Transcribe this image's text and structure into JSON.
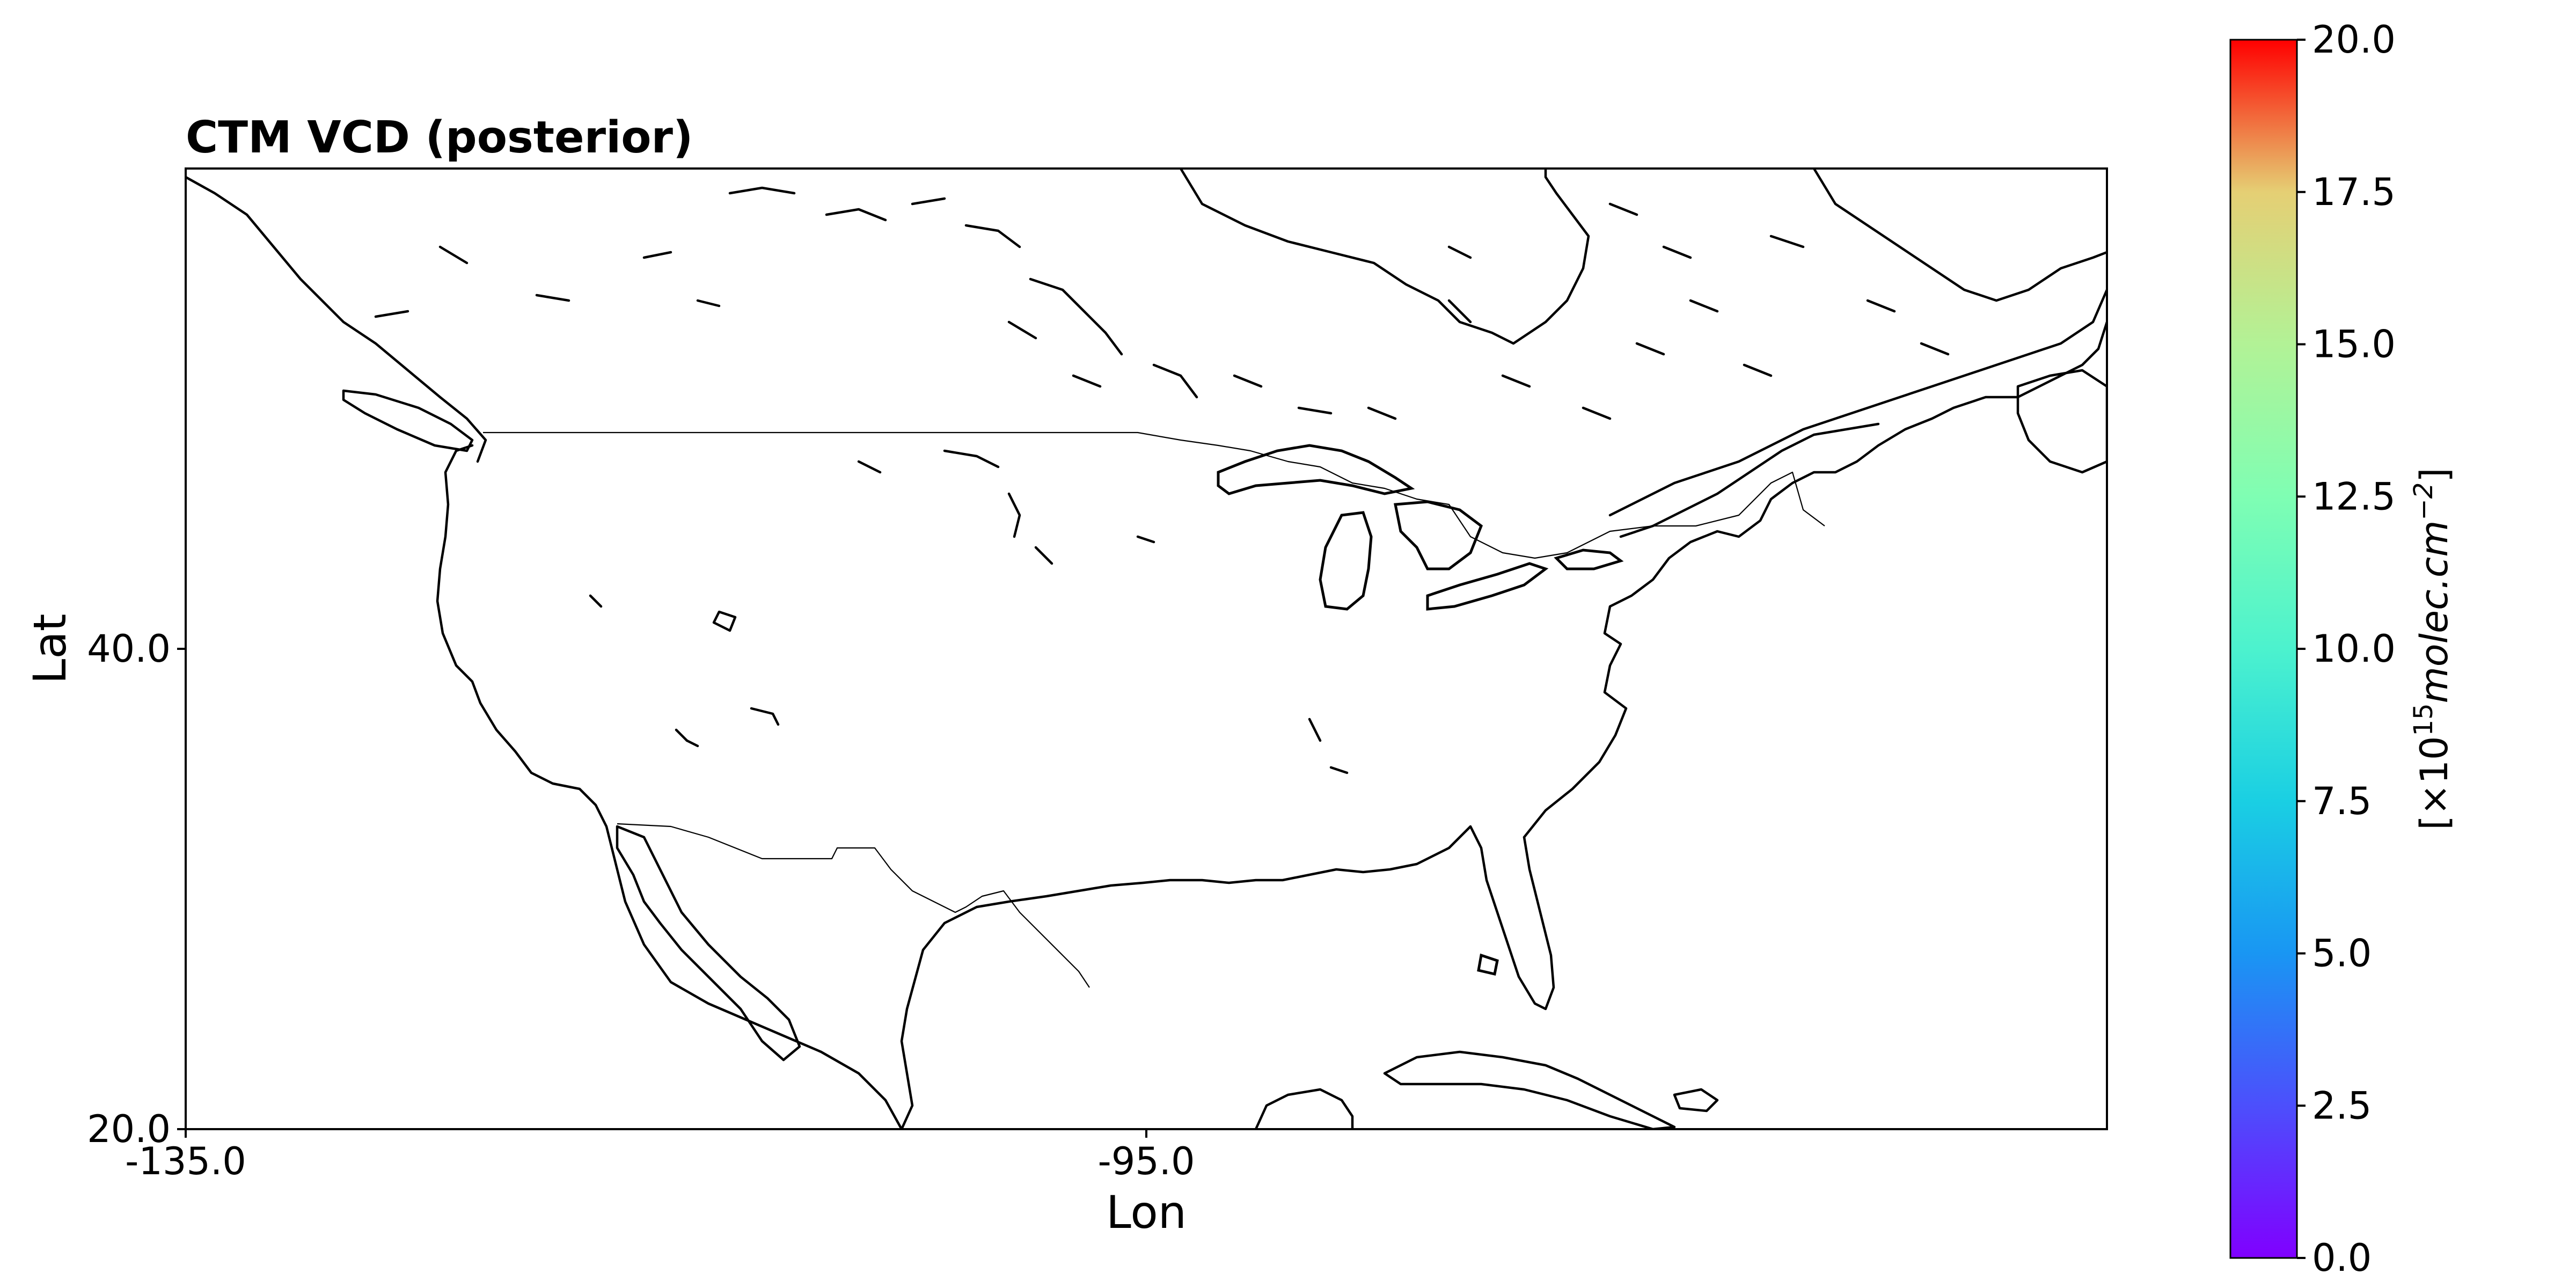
{
  "chart_data": {
    "type": "heatmap",
    "title": "CTM VCD (posterior)",
    "xlabel": "Lon",
    "ylabel": "Lat",
    "xlim": [
      -135.0,
      -55.0
    ],
    "ylim": [
      20.0,
      60.0
    ],
    "x_ticks": [
      "-135.0",
      "-95.0"
    ],
    "y_ticks": [
      "20.0",
      "40.0"
    ],
    "grid": false,
    "values": [],
    "colorbar": {
      "colormap": "rainbow",
      "range": [
        0.0,
        20.0
      ],
      "ticks": [
        "0.0",
        "2.5",
        "5.0",
        "7.5",
        "10.0",
        "12.5",
        "15.0",
        "17.5",
        "20.0"
      ],
      "label_prefix": "[×10",
      "label_exp": "15",
      "label_unit": "molec.cm",
      "label_unit_exp": "−2",
      "label_suffix": "]"
    }
  }
}
